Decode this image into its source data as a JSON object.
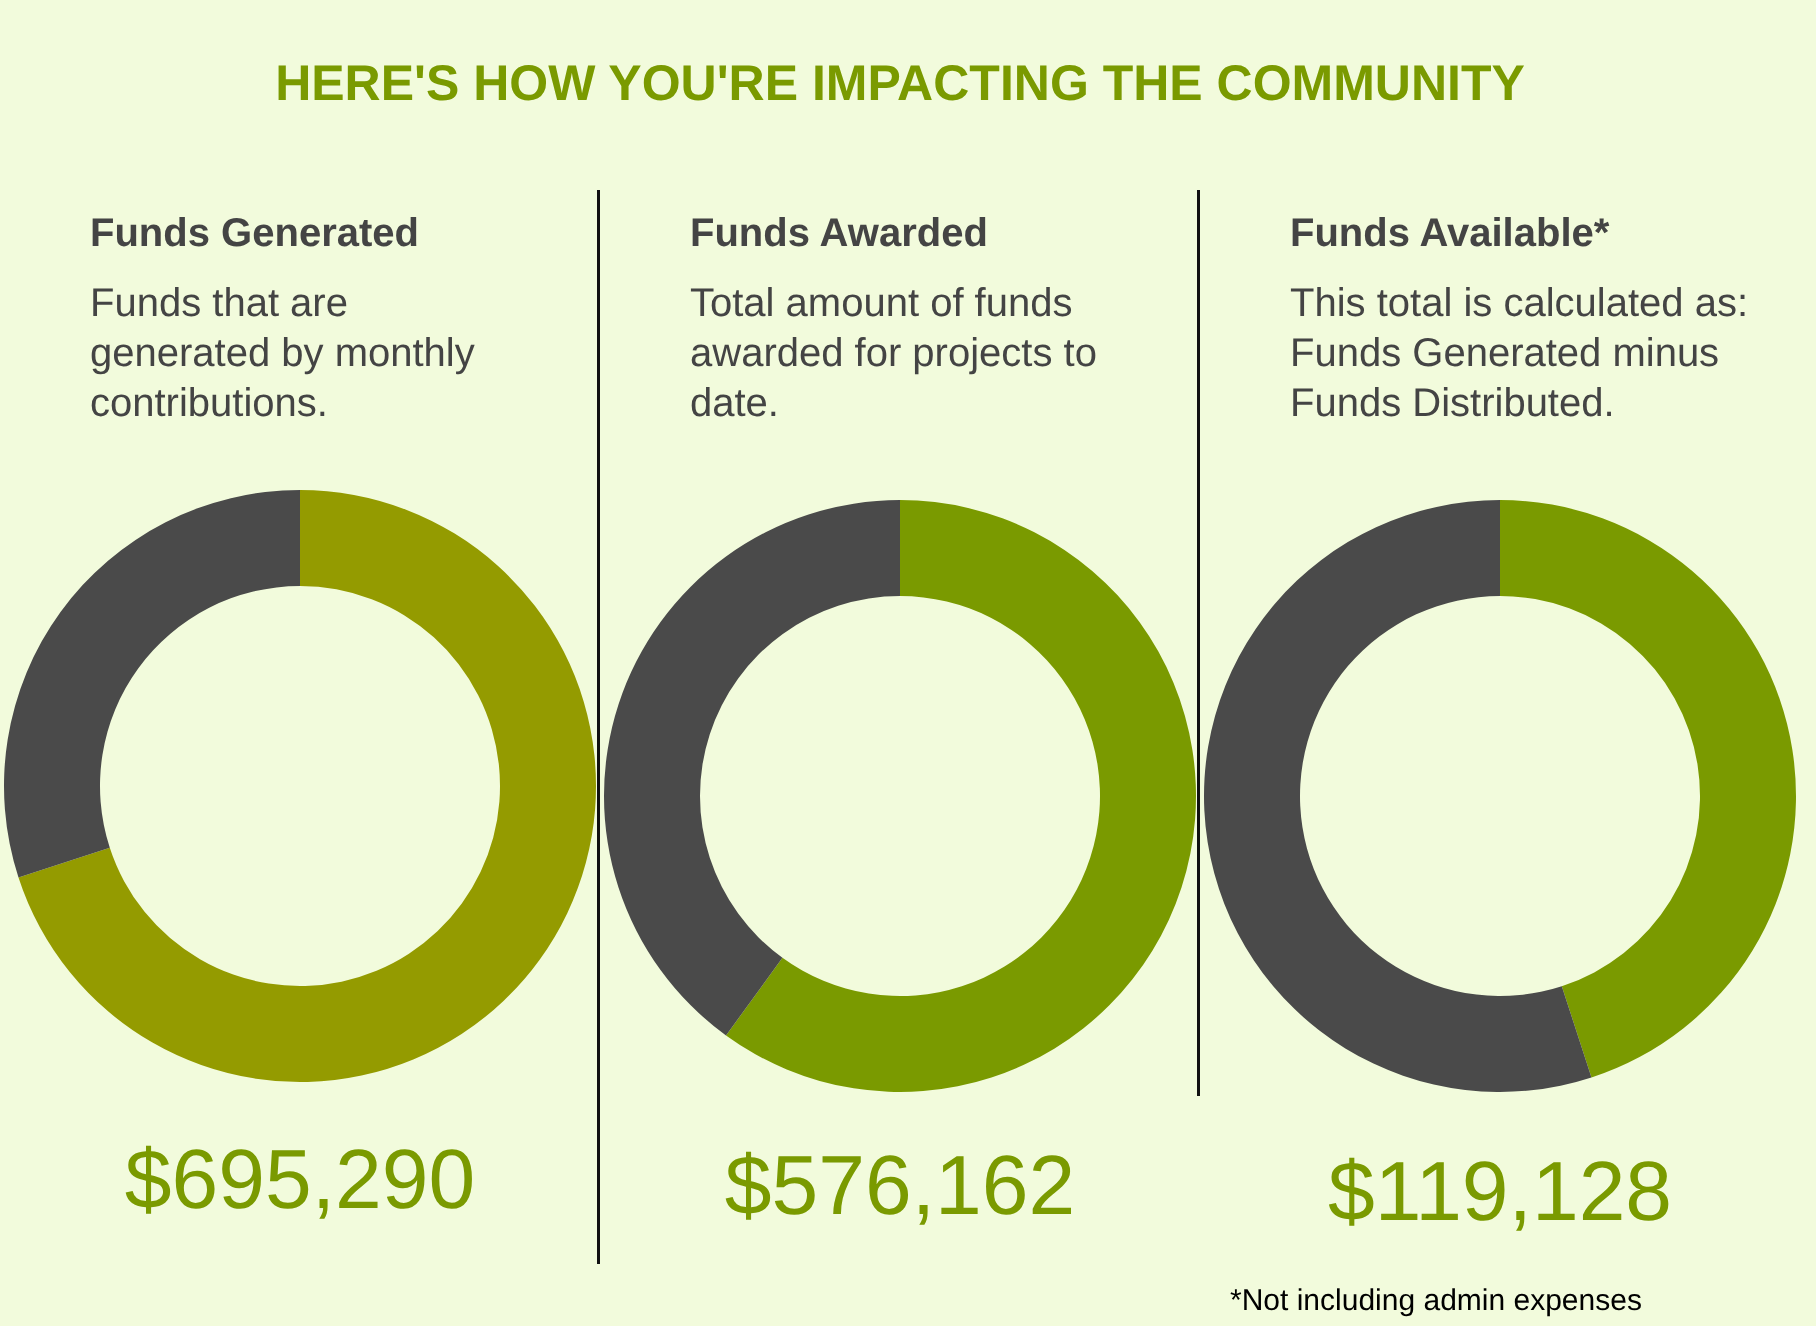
{
  "chart_data": [
    {
      "type": "other",
      "title": "HERE'S HOW YOU'RE IMPACTING THE COMMUNITY"
    },
    {
      "type": "donut",
      "title": "Funds Generated",
      "subtitle": "Funds that are generated by monthly contributions.",
      "categories": [
        null,
        null
      ],
      "values": [
        70,
        30
      ],
      "colors": [
        "#949b00",
        "#4a4a4a"
      ],
      "annotations": [
        "$695,290"
      ]
    },
    {
      "type": "donut",
      "title": "Funds Awarded",
      "subtitle": "Total amount of funds awarded for projects to date.",
      "categories": [
        null,
        null
      ],
      "values": [
        60,
        40
      ],
      "colors": [
        "#7a9a00",
        "#4a4a4a"
      ],
      "annotations": [
        "$576,162"
      ]
    },
    {
      "type": "donut",
      "title": "Funds Available*",
      "subtitle": "This total is calculated as: Funds Generated minus Funds Distributed.",
      "categories": [
        null,
        null
      ],
      "values": [
        45,
        55
      ],
      "colors": [
        "#7a9a00",
        "#4a4a4a"
      ],
      "annotations": [
        "$119,128",
        "*Not including admin expenses"
      ]
    }
  ]
}
